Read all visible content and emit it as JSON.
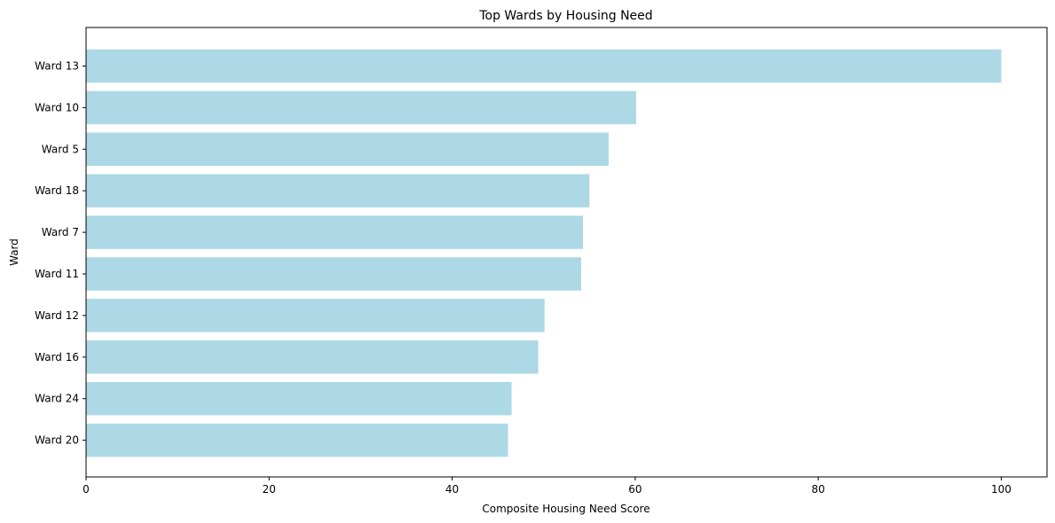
{
  "chart_data": {
    "type": "bar",
    "orientation": "horizontal",
    "title": "Top Wards by Housing Need",
    "xlabel": "Composite Housing Need Score",
    "ylabel": "Ward",
    "categories": [
      "Ward 13",
      "Ward 10",
      "Ward 5",
      "Ward 18",
      "Ward 7",
      "Ward 11",
      "Ward 12",
      "Ward 16",
      "Ward 24",
      "Ward 20"
    ],
    "values": [
      100,
      60.1,
      57.1,
      55.0,
      54.3,
      54.1,
      50.1,
      49.4,
      46.5,
      46.1
    ],
    "xlim": [
      0,
      105
    ],
    "xticks": [
      0,
      20,
      40,
      60,
      80,
      100
    ],
    "grid": false,
    "colors": {
      "bar": "#add8e6",
      "axis": "#000000",
      "text": "#000000",
      "background": "#ffffff"
    }
  }
}
